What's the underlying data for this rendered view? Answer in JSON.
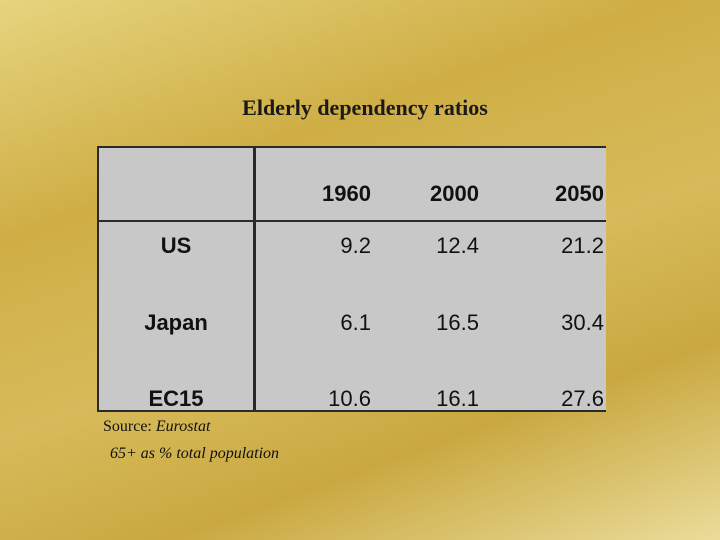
{
  "title": "Elderly dependency ratios",
  "table": {
    "columns": [
      "1960",
      "2000",
      "2050"
    ],
    "rows": [
      {
        "label": "US",
        "values": [
          "9.2",
          "12.4",
          "21.2"
        ]
      },
      {
        "label": "Japan",
        "values": [
          "6.1",
          "16.5",
          "30.4"
        ]
      },
      {
        "label": "EC15",
        "values": [
          "10.6",
          "16.1",
          "27.6"
        ]
      }
    ]
  },
  "source": {
    "prefix": "Source:",
    "name": "Eurostat"
  },
  "note": "65+ as % total population",
  "colors": {
    "table_bg": "#c8c8c8",
    "background": "#d7bb5a"
  }
}
